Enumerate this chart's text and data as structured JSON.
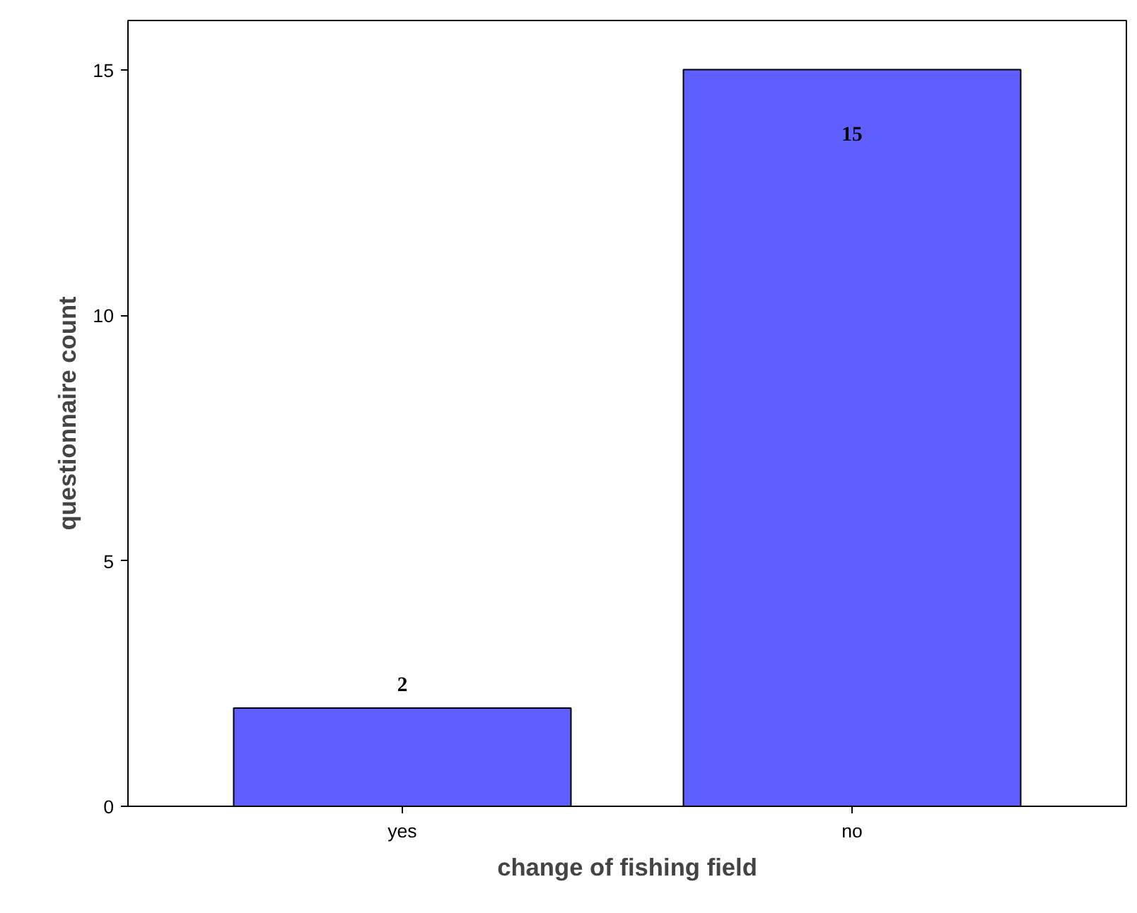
{
  "chart_data": {
    "type": "bar",
    "xlabel": "change of fishing field",
    "ylabel": "questionnaire count",
    "categories": [
      "yes",
      "no"
    ],
    "values": [
      2,
      15
    ],
    "color": "#5f5fff",
    "ylim": [
      0,
      16
    ],
    "yticks": [
      0,
      5,
      10,
      15
    ],
    "grid": false,
    "data_labels": true
  }
}
